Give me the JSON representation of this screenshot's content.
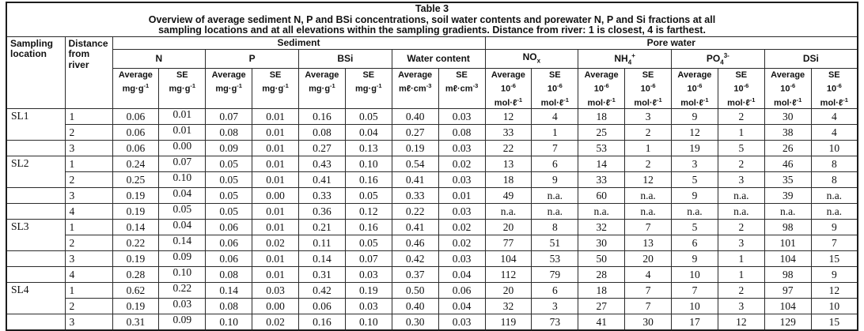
{
  "title": {
    "line1": "Table 3",
    "line2": "Overview of average sediment N, P and BSi concentrations, soil water contents and porewater N, P and Si fractions at all",
    "line3": "sampling locations and at all elevations within the sampling gradients. Distance from river: 1 is closest, 4 is farthest."
  },
  "header": {
    "col_sampling_location": "Sampling location",
    "col_distance": "Distance from river",
    "group_sediment": "Sediment",
    "group_pore_water": "Pore water",
    "species": [
      {
        "base": "N",
        "sub": "",
        "sup": ""
      },
      {
        "base": "P",
        "sub": "",
        "sup": ""
      },
      {
        "base": "BSi",
        "sub": "",
        "sup": ""
      },
      {
        "base": "Water content",
        "sub": "",
        "sup": ""
      },
      {
        "base": "NO",
        "sub": "x",
        "sup": ""
      },
      {
        "base": "NH",
        "sub": "4",
        "sup": "+"
      },
      {
        "base": "PO",
        "sub": "4",
        "sup": "3-"
      },
      {
        "base": "DSi",
        "sub": "",
        "sup": ""
      }
    ],
    "unit_cells": [
      {
        "label": "Average",
        "lines": [
          {
            "text": "mg·g",
            "sup": "-1"
          }
        ]
      },
      {
        "label": "SE",
        "lines": [
          {
            "text": "mg·g",
            "sup": "-1"
          }
        ]
      },
      {
        "label": "Average",
        "lines": [
          {
            "text": "mg·g",
            "sup": "-1"
          }
        ]
      },
      {
        "label": "SE",
        "lines": [
          {
            "text": "mg·g",
            "sup": "-1"
          }
        ]
      },
      {
        "label": "Average",
        "lines": [
          {
            "text": "mg·g",
            "sup": "-1"
          }
        ]
      },
      {
        "label": "SE",
        "lines": [
          {
            "text": "mg·g",
            "sup": "-1"
          }
        ]
      },
      {
        "label": "Average",
        "lines": [
          {
            "text": "mℓ·cm",
            "sup": "-3"
          }
        ]
      },
      {
        "label": "SE",
        "lines": [
          {
            "text": "mℓ·cm",
            "sup": "-3"
          }
        ]
      },
      {
        "label": "Average",
        "lines": [
          {
            "text": "10",
            "sup": "-6"
          },
          {
            "text": "mol·ℓ",
            "sup": "-1"
          }
        ]
      },
      {
        "label": "SE",
        "lines": [
          {
            "text": "10",
            "sup": "-6"
          },
          {
            "text": "mol·ℓ",
            "sup": "-1"
          }
        ]
      },
      {
        "label": "Average",
        "lines": [
          {
            "text": "10",
            "sup": "-6"
          },
          {
            "text": "mol·ℓ",
            "sup": "-1"
          }
        ]
      },
      {
        "label": "SE",
        "lines": [
          {
            "text": "10",
            "sup": "-6"
          },
          {
            "text": "mol·ℓ",
            "sup": "-1"
          }
        ]
      },
      {
        "label": "Average",
        "lines": [
          {
            "text": "10",
            "sup": "-6"
          },
          {
            "text": "mol·ℓ",
            "sup": "-1"
          }
        ]
      },
      {
        "label": "SE",
        "lines": [
          {
            "text": "10",
            "sup": "-6"
          },
          {
            "text": "mol·ℓ",
            "sup": "-1"
          }
        ]
      },
      {
        "label": "Average",
        "lines": [
          {
            "text": "10",
            "sup": "-6"
          },
          {
            "text": "mol·ℓ",
            "sup": "-1"
          }
        ]
      },
      {
        "label": "SE",
        "lines": [
          {
            "text": "10",
            "sup": "-6"
          },
          {
            "text": "mol·ℓ",
            "sup": "-1"
          }
        ]
      }
    ]
  },
  "table": {
    "rows": [
      {
        "location": "SL1",
        "loc_mode": "start",
        "distance": "1",
        "values": [
          "0.06",
          "0.01",
          "0.07",
          "0.01",
          "0.16",
          "0.05",
          "0.40",
          "0.03",
          "12",
          "4",
          "18",
          "3",
          "9",
          "2",
          "30",
          "4"
        ]
      },
      {
        "location": "",
        "loc_mode": "merged",
        "distance": "2",
        "values": [
          "0.06",
          "0.01",
          "0.08",
          "0.01",
          "0.08",
          "0.04",
          "0.27",
          "0.08",
          "33",
          "1",
          "25",
          "2",
          "12",
          "1",
          "38",
          "4"
        ]
      },
      {
        "location": "",
        "loc_mode": "empty",
        "distance": "3",
        "values": [
          "0.06",
          "0.00",
          "0.09",
          "0.01",
          "0.27",
          "0.13",
          "0.19",
          "0.03",
          "22",
          "7",
          "53",
          "1",
          "19",
          "5",
          "26",
          "10"
        ]
      },
      {
        "location": "SL2",
        "loc_mode": "start",
        "distance": "1",
        "values": [
          "0.24",
          "0.07",
          "0.05",
          "0.01",
          "0.43",
          "0.10",
          "0.54",
          "0.02",
          "13",
          "6",
          "14",
          "2",
          "3",
          "2",
          "46",
          "8"
        ]
      },
      {
        "location": "",
        "loc_mode": "merged",
        "distance": "2",
        "values": [
          "0.25",
          "0.10",
          "0.05",
          "0.01",
          "0.41",
          "0.16",
          "0.41",
          "0.03",
          "18",
          "9",
          "33",
          "12",
          "5",
          "3",
          "35",
          "8"
        ]
      },
      {
        "location": "",
        "loc_mode": "empty",
        "distance": "3",
        "values": [
          "0.19",
          "0.04",
          "0.05",
          "0.00",
          "0.33",
          "0.05",
          "0.33",
          "0.01",
          "49",
          "n.a.",
          "60",
          "n.a.",
          "9",
          "n.a.",
          "39",
          "n.a."
        ]
      },
      {
        "location": "",
        "loc_mode": "empty",
        "distance": "4",
        "values": [
          "0.19",
          "0.05",
          "0.05",
          "0.01",
          "0.36",
          "0.12",
          "0.22",
          "0.03",
          "n.a.",
          "n.a.",
          "n.a.",
          "n.a.",
          "n.a.",
          "n.a.",
          "n.a.",
          "n.a."
        ]
      },
      {
        "location": "SL3",
        "loc_mode": "start",
        "distance": "1",
        "values": [
          "0.14",
          "0.04",
          "0.06",
          "0.01",
          "0.21",
          "0.16",
          "0.41",
          "0.02",
          "20",
          "8",
          "32",
          "7",
          "5",
          "2",
          "98",
          "9"
        ]
      },
      {
        "location": "",
        "loc_mode": "merged",
        "distance": "2",
        "values": [
          "0.22",
          "0.14",
          "0.06",
          "0.02",
          "0.11",
          "0.05",
          "0.46",
          "0.02",
          "77",
          "51",
          "30",
          "13",
          "6",
          "3",
          "101",
          "7"
        ]
      },
      {
        "location": "",
        "loc_mode": "empty",
        "distance": "3",
        "values": [
          "0.19",
          "0.09",
          "0.06",
          "0.01",
          "0.14",
          "0.07",
          "0.42",
          "0.03",
          "104",
          "53",
          "50",
          "20",
          "9",
          "1",
          "104",
          "15"
        ]
      },
      {
        "location": "",
        "loc_mode": "empty",
        "distance": "4",
        "values": [
          "0.28",
          "0.10",
          "0.08",
          "0.01",
          "0.31",
          "0.03",
          "0.37",
          "0.04",
          "112",
          "79",
          "28",
          "4",
          "10",
          "1",
          "98",
          "9"
        ]
      },
      {
        "location": "SL4",
        "loc_mode": "start",
        "distance": "1",
        "values": [
          "0.62",
          "0.22",
          "0.14",
          "0.03",
          "0.42",
          "0.19",
          "0.50",
          "0.06",
          "20",
          "6",
          "18",
          "7",
          "7",
          "2",
          "97",
          "12"
        ]
      },
      {
        "location": "",
        "loc_mode": "merged",
        "distance": "2",
        "values": [
          "0.19",
          "0.03",
          "0.08",
          "0.00",
          "0.06",
          "0.03",
          "0.40",
          "0.04",
          "32",
          "3",
          "27",
          "7",
          "10",
          "3",
          "104",
          "10"
        ]
      },
      {
        "location": "",
        "loc_mode": "empty",
        "distance": "3",
        "values": [
          "0.31",
          "0.09",
          "0.10",
          "0.02",
          "0.16",
          "0.10",
          "0.30",
          "0.03",
          "119",
          "73",
          "41",
          "30",
          "17",
          "12",
          "129",
          "15"
        ]
      }
    ]
  }
}
